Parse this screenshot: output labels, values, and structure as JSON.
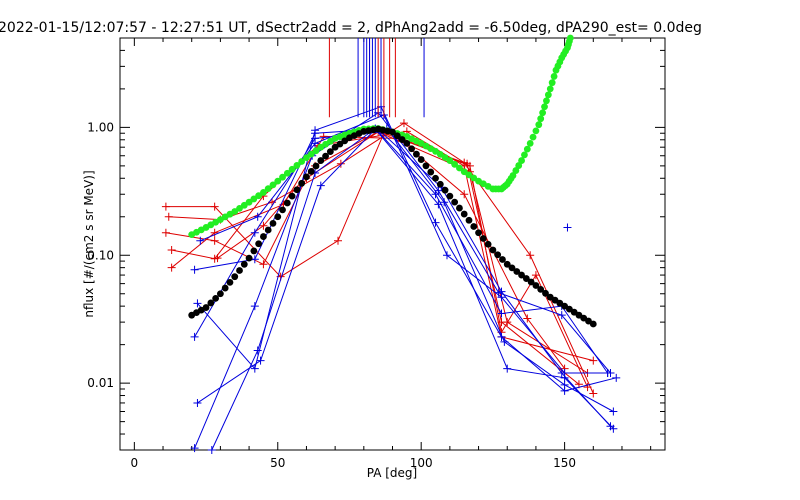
{
  "chart_data": {
    "type": "scatter",
    "title": "2022-01-15/12:07:57 - 12:27:51 UT, dSectr2add = 2, dPhAng2add = -6.50deg, dPA290_est=   0.0deg",
    "xlabel": "PA [deg]",
    "ylabel": "nflux [#/(cm2 s sr MeV)]",
    "xlim": [
      -5,
      185
    ],
    "ylim": [
      0.003,
      5
    ],
    "yscale": "log",
    "grid": false,
    "x_ticks": [
      {
        "value": 0,
        "label": "0"
      },
      {
        "value": 50,
        "label": "50"
      },
      {
        "value": 100,
        "label": "100"
      },
      {
        "value": 150,
        "label": "150"
      }
    ],
    "y_ticks": [
      {
        "value": 0.01,
        "label": "0.01"
      },
      {
        "value": 0.1,
        "label": "0.10"
      },
      {
        "value": 1,
        "label": "1.00"
      }
    ],
    "colors": {
      "red": "#dd0000",
      "blue": "#0000dd",
      "green": "#22ee22",
      "black": "#000000"
    },
    "series": [
      {
        "color": "red",
        "kind": "line+plus",
        "x": [
          11,
          28,
          51,
          71,
          87,
          116,
          128,
          155
        ],
        "y": [
          0.24,
          0.24,
          0.068,
          0.13,
          0.9,
          0.52,
          0.03,
          0.0098
        ]
      },
      {
        "color": "red",
        "kind": "line+plus",
        "x": [
          11,
          28,
          45,
          60,
          85,
          117,
          130,
          158
        ],
        "y": [
          0.15,
          0.13,
          0.085,
          0.4,
          0.92,
          0.45,
          0.03,
          0.012
        ]
      },
      {
        "color": "red",
        "kind": "line+plus",
        "x": [
          12,
          30,
          48,
          72,
          94,
          115,
          138,
          160
        ],
        "y": [
          0.2,
          0.19,
          0.26,
          0.52,
          1.08,
          0.53,
          0.1,
          0.0083
        ]
      },
      {
        "color": "red",
        "kind": "line+plus",
        "x": [
          13,
          28,
          45,
          64,
          95,
          115,
          128,
          160
        ],
        "y": [
          0.11,
          0.094,
          0.29,
          0.72,
          0.93,
          0.5,
          0.023,
          0.015
        ]
      },
      {
        "color": "red",
        "kind": "line+plus",
        "x": [
          13,
          28,
          52,
          66,
          92,
          115,
          137,
          150
        ],
        "y": [
          0.08,
          0.15,
          0.25,
          0.85,
          0.82,
          0.3,
          0.032,
          0.013
        ]
      },
      {
        "color": "red",
        "kind": "line+plus",
        "x": [
          29,
          45,
          63,
          86,
          117,
          128,
          140,
          158
        ],
        "y": [
          0.095,
          0.17,
          0.5,
          0.95,
          0.5,
          0.025,
          0.07,
          0.0093
        ]
      },
      {
        "color": "blue",
        "kind": "line+plus",
        "x": [
          21,
          42,
          63,
          88,
          108,
          129,
          150,
          167
        ],
        "y": [
          0.077,
          0.093,
          0.9,
          0.98,
          0.26,
          0.021,
          0.0097,
          0.006
        ]
      },
      {
        "color": "blue",
        "kind": "line+plus",
        "x": [
          21,
          42,
          63,
          86,
          107,
          128,
          149,
          166
        ],
        "y": [
          0.023,
          0.15,
          0.82,
          0.92,
          0.34,
          0.052,
          0.012,
          0.0046
        ]
      },
      {
        "color": "blue",
        "kind": "line+plus",
        "x": [
          22,
          44,
          65,
          84,
          106,
          130,
          150,
          167
        ],
        "y": [
          0.007,
          0.015,
          0.35,
          0.97,
          0.25,
          0.013,
          0.011,
          0.0044
        ]
      },
      {
        "color": "blue",
        "kind": "line+plus",
        "x": [
          23,
          43,
          63,
          87,
          109,
          128,
          150,
          165
        ],
        "y": [
          0.13,
          0.2,
          0.75,
          1.25,
          0.1,
          0.047,
          0.012,
          0.012
        ]
      },
      {
        "color": "blue",
        "kind": "line+plus",
        "x": [
          21,
          42,
          62,
          85,
          106,
          127,
          149,
          166
        ],
        "y": [
          0.0031,
          0.04,
          0.6,
          1.3,
          0.32,
          0.051,
          0.034,
          0.012
        ]
      },
      {
        "color": "blue",
        "kind": "line+plus",
        "x": [
          22,
          42,
          63,
          86,
          105,
          128,
          150,
          168
        ],
        "y": [
          0.042,
          0.013,
          0.95,
          1.45,
          0.18,
          0.023,
          0.0087,
          0.011
        ]
      },
      {
        "color": "blue",
        "kind": "line+plus",
        "x": [
          27,
          43,
          63,
          84,
          105,
          128,
          149,
          165
        ],
        "y": [
          0.003,
          0.018,
          0.44,
          0.98,
          0.3,
          0.035,
          0.04,
          0.012
        ]
      },
      {
        "color": "blue",
        "kind": "plus",
        "x": [
          151
        ],
        "y": [
          0.165
        ]
      },
      {
        "color": "red",
        "kind": "vline",
        "x": [
          68,
          82,
          85,
          87,
          89,
          91
        ],
        "y": [
          1.2,
          1.2,
          1.2,
          1.2,
          1.2,
          1.2
        ]
      },
      {
        "color": "blue",
        "kind": "vline",
        "x": [
          78,
          80,
          81,
          82,
          83,
          84,
          86,
          101
        ],
        "y": [
          1.2,
          1.2,
          1.2,
          1.2,
          1.2,
          1.2,
          1.2,
          1.2
        ]
      },
      {
        "color": "green",
        "kind": "dots",
        "x": [
          20,
          25,
          30,
          35,
          40,
          45,
          50,
          55,
          60,
          65,
          70,
          75,
          80,
          85,
          90,
          95,
          100,
          105,
          110,
          115,
          120,
          125,
          128,
          130,
          132,
          135,
          138,
          141,
          143,
          145,
          147,
          149,
          151,
          152
        ],
        "y": [
          0.145,
          0.165,
          0.19,
          0.22,
          0.26,
          0.31,
          0.38,
          0.47,
          0.58,
          0.7,
          0.82,
          0.9,
          0.97,
          0.98,
          0.92,
          0.85,
          0.75,
          0.65,
          0.55,
          0.45,
          0.38,
          0.33,
          0.33,
          0.36,
          0.42,
          0.55,
          0.75,
          1.05,
          1.45,
          2.0,
          2.8,
          3.5,
          4.2,
          5.0
        ]
      },
      {
        "color": "black",
        "kind": "dots",
        "x": [
          20,
          25,
          30,
          35,
          40,
          45,
          50,
          55,
          60,
          65,
          70,
          75,
          80,
          85,
          90,
          95,
          100,
          105,
          110,
          115,
          120,
          125,
          130,
          135,
          140,
          145,
          150,
          155,
          160
        ],
        "y": [
          0.034,
          0.039,
          0.05,
          0.068,
          0.095,
          0.14,
          0.2,
          0.29,
          0.41,
          0.55,
          0.7,
          0.83,
          0.93,
          0.97,
          0.92,
          0.75,
          0.56,
          0.4,
          0.29,
          0.21,
          0.15,
          0.11,
          0.085,
          0.07,
          0.058,
          0.047,
          0.04,
          0.034,
          0.029
        ]
      }
    ]
  }
}
